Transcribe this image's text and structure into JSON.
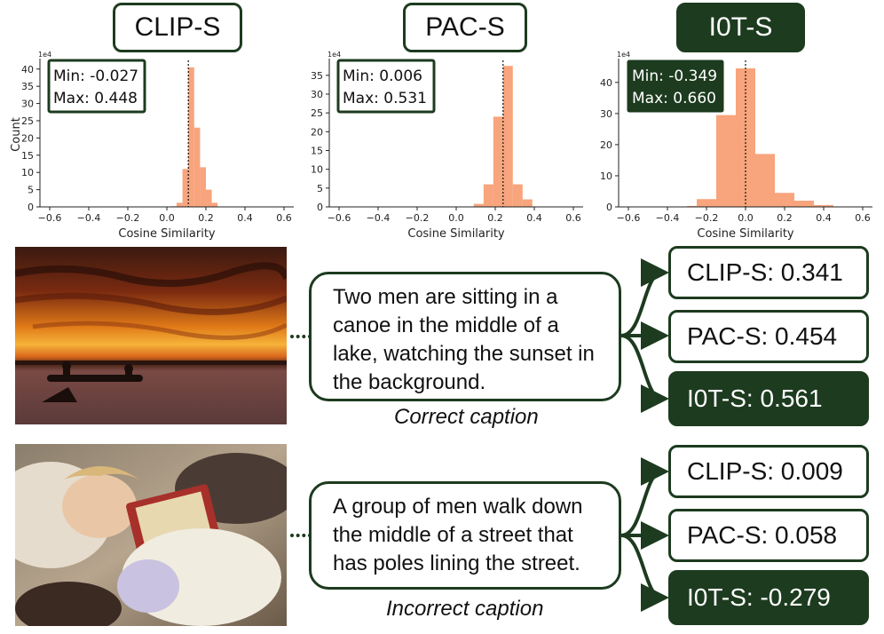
{
  "colors": {
    "accent": "#1d3b1f",
    "bar": "#f8a47c"
  },
  "chart_data": [
    {
      "type": "bar",
      "title": "CLIP-S",
      "xlabel": "Cosine Similarity",
      "ylabel": "Count",
      "multiplier": "1e4",
      "xticks": [
        "−0.6",
        "−0.4",
        "−0.2",
        "0.0",
        "0.2",
        "0.4",
        "0.6"
      ],
      "yticks": [
        "0",
        "5",
        "10",
        "15",
        "20",
        "25",
        "30",
        "35",
        "40"
      ],
      "xlim": [
        -0.65,
        0.65
      ],
      "ylim": [
        0,
        42
      ],
      "bins": [
        [
          0.02,
          0.05,
          0.2
        ],
        [
          0.05,
          0.08,
          1.2
        ],
        [
          0.08,
          0.11,
          11
        ],
        [
          0.11,
          0.14,
          40.5
        ],
        [
          0.14,
          0.17,
          23
        ],
        [
          0.17,
          0.2,
          11.5
        ],
        [
          0.2,
          0.23,
          5
        ],
        [
          0.23,
          0.26,
          1.2
        ]
      ],
      "mean_line": 0.11,
      "stats": {
        "min": "Min: -0.027",
        "max": "Max: 0.448"
      },
      "stats_style": "outline"
    },
    {
      "type": "bar",
      "title": "PAC-S",
      "xlabel": "Cosine Similarity",
      "ylabel": "",
      "multiplier": "1e4",
      "xticks": [
        "−0.6",
        "−0.4",
        "−0.2",
        "0.0",
        "0.2",
        "0.4",
        "0.6"
      ],
      "yticks": [
        "0",
        "5",
        "10",
        "15",
        "20",
        "25",
        "30",
        "35"
      ],
      "xlim": [
        -0.65,
        0.65
      ],
      "ylim": [
        0,
        38.5
      ],
      "bins": [
        [
          0.09,
          0.14,
          0.8
        ],
        [
          0.14,
          0.19,
          6
        ],
        [
          0.19,
          0.24,
          24
        ],
        [
          0.24,
          0.29,
          37.5
        ],
        [
          0.29,
          0.34,
          6
        ],
        [
          0.34,
          0.39,
          2
        ]
      ],
      "mean_line": 0.24,
      "stats": {
        "min": "Min: 0.006",
        "max": "Max: 0.531"
      },
      "stats_style": "outline"
    },
    {
      "type": "bar",
      "title": "I0T-S",
      "xlabel": "Cosine Similarity",
      "ylabel": "",
      "multiplier": "1e4",
      "xticks": [
        "−0.6",
        "−0.4",
        "−0.2",
        "0.0",
        "0.2",
        "0.4",
        "0.6"
      ],
      "yticks": [
        "0",
        "10",
        "20",
        "30",
        "40"
      ],
      "xlim": [
        -0.65,
        0.65
      ],
      "ylim": [
        0,
        46.5
      ],
      "bins": [
        [
          -0.3,
          -0.25,
          0.3
        ],
        [
          -0.25,
          -0.15,
          2.5
        ],
        [
          -0.15,
          -0.05,
          29.5
        ],
        [
          -0.05,
          0.05,
          44.5
        ],
        [
          0.05,
          0.15,
          17
        ],
        [
          0.15,
          0.25,
          4.5
        ],
        [
          0.25,
          0.35,
          2
        ],
        [
          0.35,
          0.45,
          0.6
        ]
      ],
      "mean_line": 0.0,
      "stats": {
        "min": "Min: -0.349",
        "max": "Max: 0.660"
      },
      "stats_style": "dark"
    }
  ],
  "examples": [
    {
      "caption": "Two men are sitting in a canoe in the middle of a lake, watching the sunset in the background.",
      "label": "Correct caption",
      "scores": [
        "CLIP-S: 0.341",
        "PAC-S: 0.454",
        "I0T-S: 0.561"
      ]
    },
    {
      "caption": "A group of men walk down the middle of a street that has poles lining the street.",
      "label": "Incorrect caption",
      "scores": [
        "CLIP-S: 0.009",
        "PAC-S: 0.058",
        "I0T-S: -0.279"
      ]
    }
  ]
}
